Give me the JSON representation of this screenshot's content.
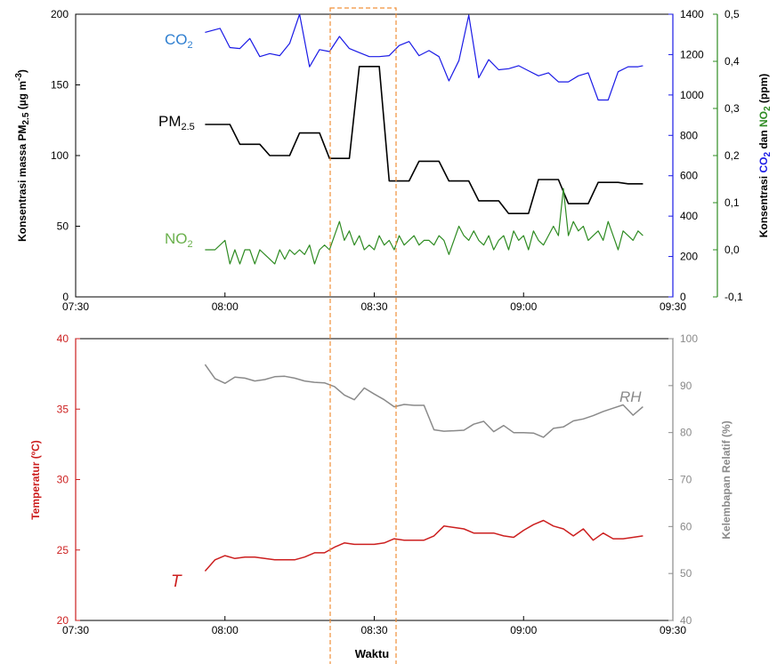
{
  "chart_data": [
    {
      "type": "line",
      "panel": "top",
      "xlabel": "",
      "x_ticks": [
        "07:30",
        "08:00",
        "08:30",
        "09:00",
        "09:30"
      ],
      "xlim": [
        "07:30",
        "09:30"
      ],
      "ylabel_left": "Konsentrasi massa PM",
      "ylabel_left_sub": "2.5",
      "ylabel_left_unit": " (µg m",
      "ylabel_left_sup": "-3",
      "ylabel_left_close": ")",
      "ylim_left": [
        0,
        200
      ],
      "yticks_left": [
        "0",
        "50",
        "100",
        "150",
        "200"
      ],
      "ylabel_right_co2_pre": "Konsentrasi ",
      "ylabel_right_co2_name": "CO",
      "ylabel_right_co2_sub": "2",
      "ylabel_right_mid": " dan ",
      "ylabel_right_no2_name": "NO",
      "ylabel_right_no2_sub": "2",
      "ylabel_right_unit": " (ppm)",
      "ylim_co2": [
        0,
        1400
      ],
      "yticks_co2": [
        "0",
        "200",
        "400",
        "600",
        "800",
        "1000",
        "1200",
        "1400"
      ],
      "ylim_no2": [
        -0.1,
        0.5
      ],
      "yticks_no2": [
        "-0,1",
        "0,0",
        "0,1",
        "0,2",
        "0,3",
        "0,4",
        "0,5"
      ],
      "colors": {
        "co2": "#1a1ae6",
        "pm": "#000000",
        "no2": "#2e8b22",
        "co2_label": "#2f7fd0",
        "no2_label": "#6ab04c"
      },
      "series": [
        {
          "name": "CO",
          "name_sub": "2",
          "axis": "co2",
          "x": [
            "07:56",
            "07:59",
            "08:01",
            "08:03",
            "08:05",
            "08:07",
            "08:09",
            "08:11",
            "08:13",
            "08:15",
            "08:17",
            "08:19",
            "08:21",
            "08:23",
            "08:25",
            "08:27",
            "08:29",
            "08:31",
            "08:33",
            "08:35",
            "08:37",
            "08:39",
            "08:41",
            "08:43",
            "08:45",
            "08:47",
            "08:49",
            "08:51",
            "08:53",
            "08:55",
            "08:57",
            "08:59",
            "09:01",
            "09:03",
            "09:05",
            "09:07",
            "09:09",
            "09:11",
            "09:13",
            "09:15",
            "09:17",
            "09:19",
            "09:21",
            "09:23",
            "09:24"
          ],
          "values": [
            1310,
            1330,
            1235,
            1230,
            1280,
            1190,
            1205,
            1195,
            1255,
            1400,
            1140,
            1225,
            1215,
            1290,
            1230,
            1210,
            1190,
            1190,
            1195,
            1245,
            1265,
            1195,
            1220,
            1190,
            1070,
            1170,
            1395,
            1085,
            1175,
            1125,
            1130,
            1145,
            1120,
            1095,
            1110,
            1065,
            1065,
            1095,
            1110,
            975,
            975,
            1115,
            1140,
            1140,
            1145
          ]
        },
        {
          "name": "PM",
          "name_sub": "2.5",
          "axis": "left",
          "x": [
            "07:56",
            "07:59",
            "08:01",
            "08:03",
            "08:05",
            "08:07",
            "08:09",
            "08:11",
            "08:13",
            "08:15",
            "08:17",
            "08:19",
            "08:21",
            "08:23",
            "08:25",
            "08:27",
            "08:29",
            "08:31",
            "08:33",
            "08:35",
            "08:37",
            "08:39",
            "08:41",
            "08:43",
            "08:45",
            "08:47",
            "08:49",
            "08:51",
            "08:53",
            "08:55",
            "08:57",
            "08:59",
            "09:01",
            "09:03",
            "09:05",
            "09:07",
            "09:09",
            "09:11",
            "09:13",
            "09:15",
            "09:17",
            "09:19",
            "09:21",
            "09:23",
            "09:24"
          ],
          "values": [
            122,
            122,
            122,
            108,
            108,
            108,
            100,
            100,
            100,
            116,
            116,
            116,
            98,
            98,
            98,
            163,
            163,
            163,
            82,
            82,
            82,
            96,
            96,
            96,
            82,
            82,
            82,
            68,
            68,
            68,
            59,
            59,
            59,
            83,
            83,
            83,
            66,
            66,
            66,
            81,
            81,
            81,
            80,
            80,
            80
          ]
        },
        {
          "name": "NO",
          "name_sub": "2",
          "axis": "no2",
          "x": [
            "07:56",
            "07:58",
            "08:00",
            "08:01",
            "08:02",
            "08:03",
            "08:04",
            "08:05",
            "08:06",
            "08:07",
            "08:08",
            "08:09",
            "08:10",
            "08:11",
            "08:12",
            "08:13",
            "08:14",
            "08:15",
            "08:16",
            "08:17",
            "08:18",
            "08:19",
            "08:20",
            "08:21",
            "08:22",
            "08:23",
            "08:24",
            "08:25",
            "08:26",
            "08:27",
            "08:28",
            "08:29",
            "08:30",
            "08:31",
            "08:32",
            "08:33",
            "08:34",
            "08:35",
            "08:36",
            "08:37",
            "08:38",
            "08:39",
            "08:40",
            "08:41",
            "08:42",
            "08:43",
            "08:44",
            "08:45",
            "08:46",
            "08:47",
            "08:48",
            "08:49",
            "08:50",
            "08:51",
            "08:52",
            "08:53",
            "08:54",
            "08:55",
            "08:56",
            "08:57",
            "08:58",
            "08:59",
            "09:00",
            "09:01",
            "09:02",
            "09:03",
            "09:04",
            "09:05",
            "09:06",
            "09:07",
            "09:08",
            "09:09",
            "09:10",
            "09:11",
            "09:12",
            "09:13",
            "09:14",
            "09:15",
            "09:16",
            "09:17",
            "09:18",
            "09:19",
            "09:20",
            "09:21",
            "09:22",
            "09:23",
            "09:24"
          ],
          "values": [
            0.0,
            0.0,
            0.02,
            -0.03,
            0.0,
            -0.03,
            0.0,
            0.0,
            -0.03,
            0.0,
            -0.01,
            -0.02,
            -0.03,
            0.0,
            -0.02,
            0.0,
            -0.01,
            0.0,
            -0.01,
            0.01,
            -0.03,
            0.0,
            0.01,
            0.0,
            0.03,
            0.06,
            0.02,
            0.04,
            0.01,
            0.03,
            0.0,
            0.01,
            0.0,
            0.03,
            0.01,
            0.02,
            0.0,
            0.03,
            0.01,
            0.02,
            0.03,
            0.01,
            0.02,
            0.02,
            0.01,
            0.03,
            0.02,
            -0.01,
            0.02,
            0.05,
            0.03,
            0.02,
            0.04,
            0.02,
            0.01,
            0.03,
            0.0,
            0.02,
            0.03,
            0.0,
            0.04,
            0.02,
            0.03,
            0.0,
            0.04,
            0.02,
            0.01,
            0.03,
            0.05,
            0.03,
            0.13,
            0.03,
            0.06,
            0.04,
            0.05,
            0.02,
            0.03,
            0.04,
            0.02,
            0.06,
            0.03,
            0.0,
            0.04,
            0.03,
            0.02,
            0.04,
            0.03
          ]
        }
      ]
    },
    {
      "type": "line",
      "panel": "bottom",
      "xlabel": "Waktu",
      "x_ticks": [
        "07:30",
        "08:00",
        "08:30",
        "09:00",
        "09:30"
      ],
      "xlim": [
        "07:30",
        "09:30"
      ],
      "ylabel_left": "Temperatur (ºC)",
      "ylim_left": [
        20,
        40
      ],
      "yticks_left": [
        "20",
        "25",
        "30",
        "35",
        "40"
      ],
      "ylabel_right": "Kelembapan Relatif (%)",
      "ylim_right": [
        40,
        100
      ],
      "yticks_right": [
        "40",
        "50",
        "60",
        "70",
        "80",
        "90",
        "100"
      ],
      "colors": {
        "temp": "#cc1f1f",
        "rh": "#8a8a8a"
      },
      "series": [
        {
          "name": "T",
          "axis": "left",
          "x": [
            "07:56",
            "07:58",
            "08:00",
            "08:02",
            "08:04",
            "08:06",
            "08:08",
            "08:10",
            "08:12",
            "08:14",
            "08:16",
            "08:18",
            "08:20",
            "08:22",
            "08:24",
            "08:26",
            "08:28",
            "08:30",
            "08:32",
            "08:34",
            "08:36",
            "08:38",
            "08:40",
            "08:42",
            "08:44",
            "08:46",
            "08:48",
            "08:50",
            "08:52",
            "08:54",
            "08:56",
            "08:58",
            "09:00",
            "09:02",
            "09:04",
            "09:06",
            "09:08",
            "09:10",
            "09:12",
            "09:14",
            "09:16",
            "09:18",
            "09:20",
            "09:22",
            "09:24"
          ],
          "values": [
            23.5,
            24.3,
            24.6,
            24.4,
            24.5,
            24.5,
            24.4,
            24.3,
            24.3,
            24.3,
            24.5,
            24.8,
            24.8,
            25.2,
            25.5,
            25.4,
            25.4,
            25.4,
            25.5,
            25.8,
            25.7,
            25.7,
            25.7,
            26.0,
            26.7,
            26.6,
            26.5,
            26.2,
            26.2,
            26.2,
            26.0,
            25.9,
            26.4,
            26.8,
            27.1,
            26.7,
            26.5,
            26.0,
            26.5,
            25.7,
            26.2,
            25.8,
            25.8,
            25.9,
            26.0
          ]
        },
        {
          "name": "RH",
          "axis": "right",
          "x": [
            "07:56",
            "07:58",
            "08:00",
            "08:02",
            "08:04",
            "08:06",
            "08:08",
            "08:10",
            "08:12",
            "08:14",
            "08:16",
            "08:18",
            "08:20",
            "08:22",
            "08:24",
            "08:26",
            "08:28",
            "08:30",
            "08:32",
            "08:34",
            "08:36",
            "08:38",
            "08:40",
            "08:42",
            "08:44",
            "08:46",
            "08:48",
            "08:50",
            "08:52",
            "08:54",
            "08:56",
            "08:58",
            "09:00",
            "09:02",
            "09:04",
            "09:06",
            "09:08",
            "09:10",
            "09:12",
            "09:14",
            "09:16",
            "09:18",
            "09:20",
            "09:22",
            "09:24"
          ],
          "values": [
            94.5,
            91.5,
            90.5,
            91.8,
            91.6,
            91.0,
            91.3,
            91.9,
            92.0,
            91.6,
            91.0,
            90.7,
            90.6,
            89.8,
            88.0,
            87.0,
            89.5,
            88.2,
            87.0,
            85.5,
            86.0,
            85.8,
            85.8,
            80.6,
            80.3,
            80.4,
            80.5,
            81.8,
            82.4,
            80.2,
            81.5,
            80.0,
            80.0,
            79.9,
            79.0,
            80.9,
            81.2,
            82.5,
            82.9,
            83.6,
            84.5,
            85.2,
            85.9,
            83.7,
            85.5
          ]
        }
      ]
    }
  ]
}
